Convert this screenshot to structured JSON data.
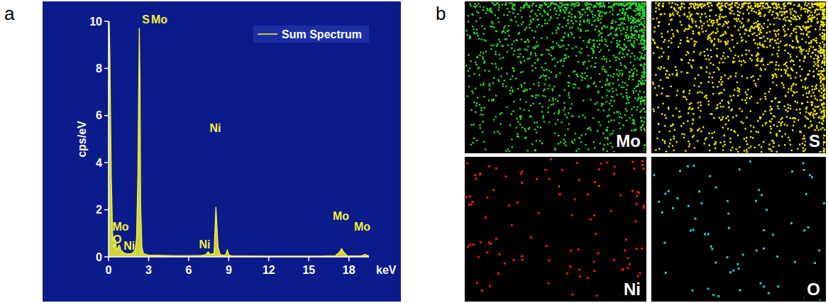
{
  "panel_labels": [
    "a",
    "b"
  ],
  "chart_data": {
    "type": "area",
    "x": [
      0,
      0.05,
      0.1,
      0.2,
      0.3,
      0.4,
      0.45,
      0.52,
      0.6,
      0.7,
      0.8,
      0.85,
      0.9,
      1.0,
      1.2,
      1.5,
      1.8,
      2.0,
      2.1,
      2.2,
      2.3,
      2.35,
      2.4,
      2.5,
      2.6,
      2.8,
      3.0,
      4,
      5,
      6,
      7,
      7.3,
      7.47,
      7.6,
      7.9,
      8.04,
      8.2,
      8.26,
      8.35,
      8.6,
      8.8,
      8.9,
      9.0,
      9.2,
      10,
      12,
      14,
      16,
      17.0,
      17.3,
      17.45,
      17.6,
      17.9,
      18.9,
      19.2,
      19.5
    ],
    "series": [
      {
        "name": "Sum Spectrum",
        "color": "#f2f23a",
        "values": [
          4.2,
          10,
          8.4,
          3.5,
          1.0,
          0.4,
          0.5,
          0.7,
          0.3,
          0.4,
          0.5,
          0.45,
          0.3,
          0.25,
          0.15,
          0.12,
          0.15,
          0.3,
          0.8,
          3.5,
          9.7,
          7.6,
          2.2,
          0.4,
          0.15,
          0.1,
          0.08,
          0.06,
          0.05,
          0.05,
          0.06,
          0.1,
          0.22,
          0.1,
          0.15,
          2.1,
          0.4,
          0.3,
          0.1,
          0.06,
          0.1,
          0.3,
          0.08,
          0.05,
          0.04,
          0.03,
          0.03,
          0.03,
          0.05,
          0.2,
          0.35,
          0.2,
          0.04,
          0.04,
          0.1,
          0.04
        ]
      }
    ],
    "xlim": [
      0,
      19.5
    ],
    "ylim": [
      0,
      10
    ],
    "xticks": [
      0,
      3,
      6,
      9,
      12,
      15,
      18
    ],
    "yticks": [
      0,
      2,
      4,
      6,
      8,
      10
    ],
    "x_label": "keV",
    "y_label": "cps/eV",
    "legend": "top-right",
    "grid": false,
    "annotations": [
      {
        "text": "S",
        "x": 2.8,
        "y": 9.9
      },
      {
        "text": "Mo",
        "x": 3.8,
        "y": 9.9
      },
      {
        "text": "Mo",
        "x": 0.9,
        "y": 1.1
      },
      {
        "text": "O",
        "x": 0.65,
        "y": 0.57
      },
      {
        "text": "Ni",
        "x": 1.55,
        "y": 0.3
      },
      {
        "text": "Ni",
        "x": 8.0,
        "y": 5.3
      },
      {
        "text": "Ni",
        "x": 7.2,
        "y": 0.36
      },
      {
        "text": "Mo",
        "x": 17.4,
        "y": 1.57
      },
      {
        "text": "Mo",
        "x": 19.0,
        "y": 1.1
      }
    ]
  },
  "maps": [
    {
      "label": "Mo",
      "color": "#2ed62e"
    },
    {
      "label": "S",
      "color": "#f5e800"
    },
    {
      "label": "Ni",
      "color": "#ee1a1a"
    },
    {
      "label": "O",
      "color": "#22c8cc"
    }
  ]
}
